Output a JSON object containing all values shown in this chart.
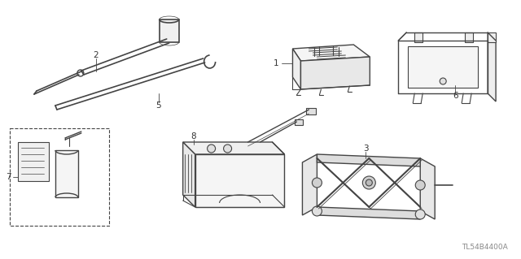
{
  "bg_color": "#ffffff",
  "fig_width": 6.4,
  "fig_height": 3.19,
  "dpi": 100,
  "part_number_text": "TL54B4400A",
  "line_color": "#444444",
  "label_color": "#333333",
  "label_fontsize": 7.5
}
